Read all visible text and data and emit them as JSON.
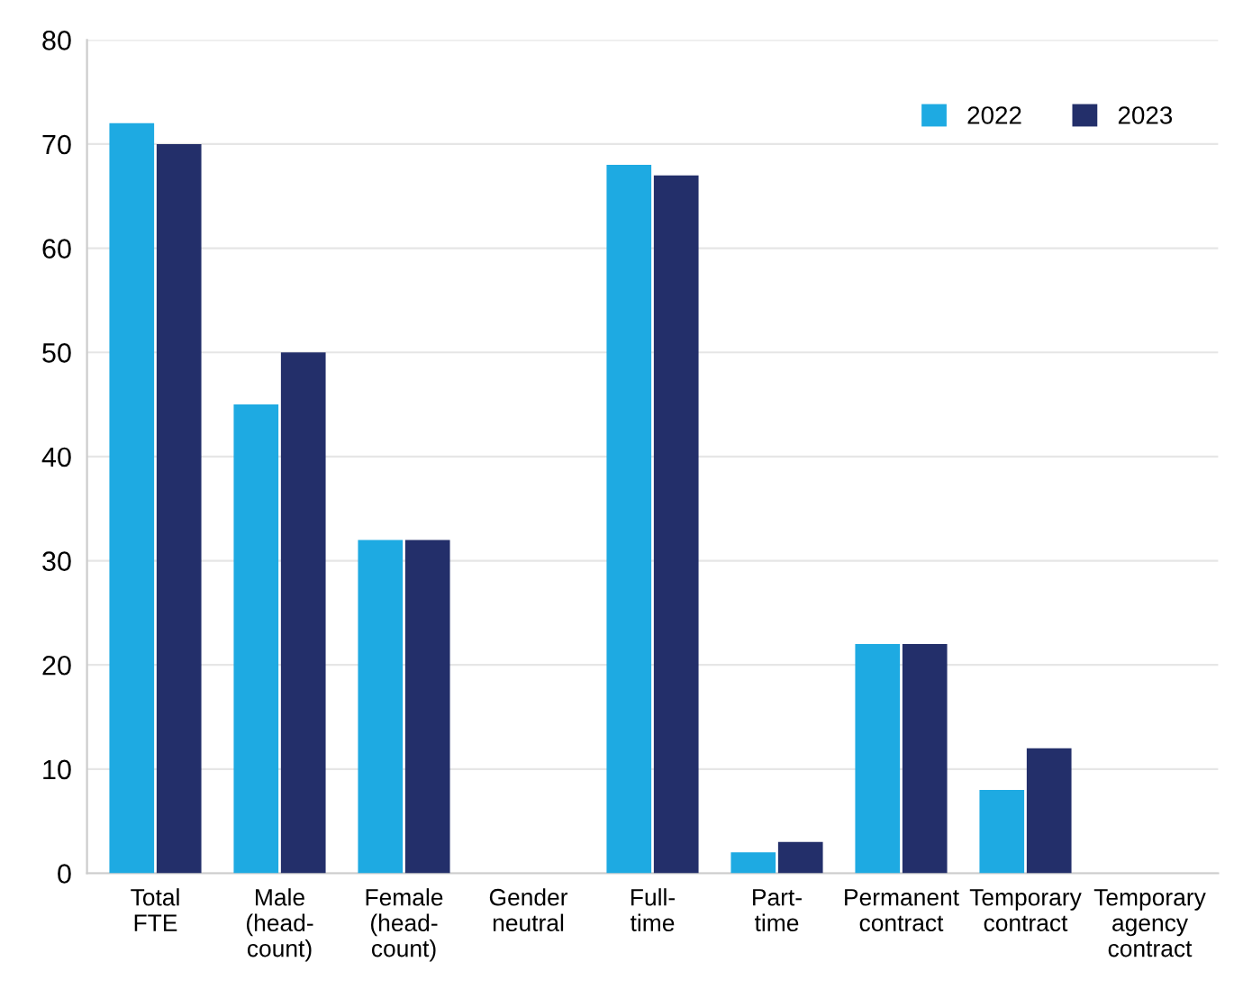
{
  "chart_data": {
    "type": "bar",
    "categories": [
      "Total\nFTE",
      "Male\n(head-\ncount)",
      "Female\n(head-\ncount)",
      "Gender\nneutral",
      "Full-\ntime",
      "Part-\ntime",
      "Permanent\ncontract",
      "Temporary\ncontract",
      "Temporary\nagency\ncontract"
    ],
    "series": [
      {
        "name": "2022",
        "color": "#1eaae2",
        "values": [
          72,
          45,
          32,
          0,
          68,
          2,
          22,
          8,
          0
        ]
      },
      {
        "name": "2023",
        "color": "#232f6a",
        "values": [
          70,
          50,
          32,
          0,
          67,
          3,
          22,
          12,
          0
        ]
      }
    ],
    "ylim": [
      0,
      80
    ],
    "yticks": [
      0,
      10,
      20,
      30,
      40,
      50,
      60,
      70,
      80
    ],
    "grid": "y",
    "legend": "top right"
  }
}
